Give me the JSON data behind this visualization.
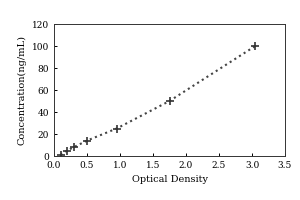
{
  "xlabel": "Optical Density",
  "ylabel": "Concentration(ng/mL)",
  "x_data": [
    0.1,
    0.2,
    0.3,
    0.5,
    0.95,
    1.75,
    3.05
  ],
  "y_data": [
    1,
    5,
    8,
    14,
    25,
    50,
    100
  ],
  "xlim": [
    0,
    3.5
  ],
  "ylim": [
    0,
    120
  ],
  "xticks": [
    0,
    0.5,
    1,
    1.5,
    2,
    2.5,
    3,
    3.5
  ],
  "yticks": [
    0,
    20,
    40,
    60,
    80,
    100,
    120
  ],
  "line_color": "#444444",
  "marker": "+",
  "marker_size": 6,
  "marker_color": "#333333",
  "line_style": ":",
  "line_width": 1.5,
  "font_size_label": 7,
  "font_size_tick": 6.5,
  "bg_color": "#ffffff",
  "figure_bg": "#ffffff",
  "outer_border_color": "#aaaaaa"
}
